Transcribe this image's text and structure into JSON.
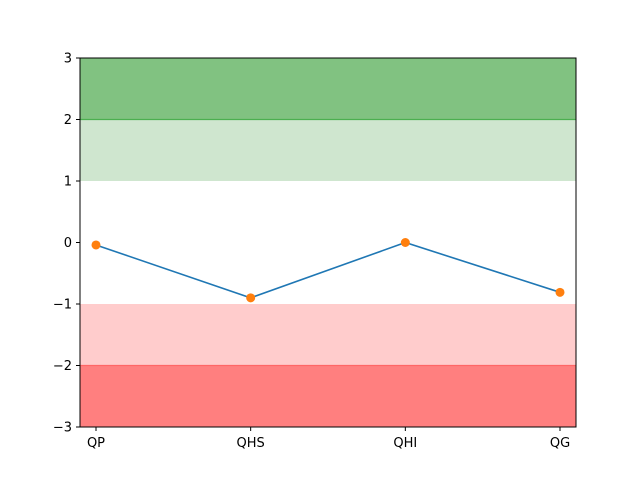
{
  "chart_data": {
    "type": "line",
    "categories": [
      "QP",
      "QHS",
      "QHI",
      "QG"
    ],
    "series": [
      {
        "values": [
          -0.04,
          -0.9,
          0.0,
          -0.81
        ],
        "line_color": "#1f77b4",
        "marker_color": "#ff7f0e"
      }
    ],
    "ylim": [
      -3,
      3
    ],
    "yticks": [
      -3,
      -2,
      -1,
      0,
      1,
      2,
      3
    ],
    "ytick_labels": [
      "−3",
      "−2",
      "−1",
      "0",
      "1",
      "2",
      "3"
    ],
    "bands": [
      {
        "from": 2,
        "to": 3,
        "color": "#81c281"
      },
      {
        "from": 1,
        "to": 2,
        "color": "#cfe6cf"
      },
      {
        "from": -2,
        "to": -1,
        "color": "#ffcccc"
      },
      {
        "from": -3,
        "to": -2,
        "color": "#ff7f7f"
      }
    ],
    "band_edge_colors": {
      "green": "#4caf50",
      "red": "#ff6666"
    },
    "title": "",
    "xlabel": "",
    "ylabel": "",
    "grid": false,
    "legend": false
  }
}
